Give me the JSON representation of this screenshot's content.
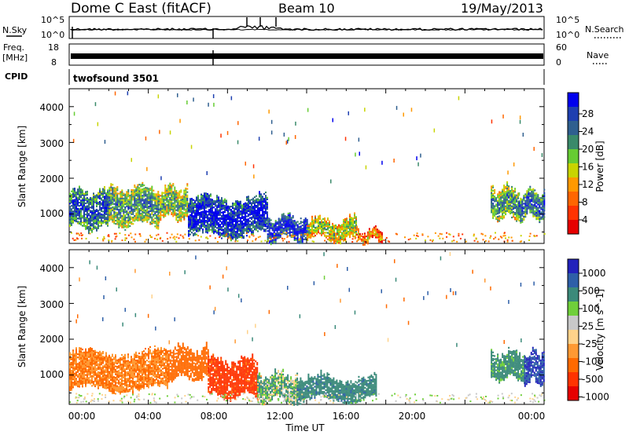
{
  "header": {
    "title": "Dome C East (fitACF)",
    "beam": "Beam 10",
    "date": "19/May/2013"
  },
  "noise_panel": {
    "left_label": "N.Sky",
    "right_label": "N.Search",
    "left_ticks": [
      "10^5",
      "10^0"
    ],
    "right_ticks": [
      "10^5",
      "10^0"
    ],
    "colors": {
      "sky": "#000000",
      "search": "#000000"
    }
  },
  "freq_panel": {
    "left_label_line1": "Freq.",
    "left_label_line2": "[MHz]",
    "right_label": "Nave",
    "left_ticks": [
      "18",
      "8"
    ],
    "right_ticks": [
      "60",
      "0"
    ]
  },
  "cpid_panel": {
    "label": "CPID",
    "program": "twofsound 3501"
  },
  "power_panel": {
    "ylabel": "Slant Range [km]",
    "yticks": [
      "4000",
      "3000",
      "2000",
      "1000"
    ],
    "colorbar_title": "Power [dB]",
    "colorbar_ticks": [
      "28",
      "24",
      "20",
      "16",
      "12",
      "8",
      "4"
    ],
    "colorbar_colors": [
      "#0000ee",
      "#1e3fb0",
      "#2f5f8f",
      "#3a8a6a",
      "#66cc33",
      "#c8d400",
      "#ff9900",
      "#ff6600",
      "#ff3300",
      "#e60000"
    ]
  },
  "velocity_panel": {
    "ylabel": "Slant Range [km]",
    "yticks": [
      "4000",
      "3000",
      "2000",
      "1000"
    ],
    "colorbar_title": "Velocity [m s^-1]",
    "colorbar_ticks": [
      "1000",
      "500",
      "100",
      "25",
      "-25",
      "-100",
      "-500",
      "-1000"
    ],
    "colorbar_colors": [
      "#2222bb",
      "#2e5fa8",
      "#3b8a7a",
      "#6fcf3a",
      "#c8c8c8",
      "#ffd28a",
      "#ff9933",
      "#ff6a00",
      "#ff3300",
      "#e60000"
    ]
  },
  "xaxis": {
    "label": "Time UT",
    "ticks": [
      "00:00",
      "04:00",
      "08:00",
      "12:00",
      "16:00",
      "20:00",
      "00:00"
    ]
  },
  "chart_data": [
    {
      "type": "line",
      "name": "noise",
      "x": [
        "00:00",
        "04:00",
        "08:00",
        "12:00",
        "16:00",
        "20:00",
        "24:00"
      ],
      "yscale": "log",
      "ylim": [
        1,
        100000
      ]
    },
    {
      "type": "line",
      "name": "frequency",
      "x": [
        "00:00",
        "24:00"
      ],
      "ylim": [
        8,
        18
      ]
    },
    {
      "type": "heatmap",
      "name": "power",
      "x_range_hours": [
        0,
        24
      ],
      "y_range_km": [
        180,
        4500
      ],
      "value_range": [
        0,
        30
      ],
      "units": "dB",
      "xlabel": "Time UT",
      "ylabel": "Slant Range [km]",
      "regions": [
        {
          "t": [
            0.0,
            2.0
          ],
          "r": [
            600,
            1600
          ],
          "db": 22
        },
        {
          "t": [
            2.0,
            4.5
          ],
          "r": [
            700,
            1700
          ],
          "db": 18
        },
        {
          "t": [
            4.5,
            6.0
          ],
          "r": [
            900,
            1700
          ],
          "db": 16
        },
        {
          "t": [
            6.0,
            10.0
          ],
          "r": [
            400,
            1400
          ],
          "db": 26
        },
        {
          "t": [
            10.0,
            12.0
          ],
          "r": [
            300,
            900
          ],
          "db": 26
        },
        {
          "t": [
            12.0,
            14.5
          ],
          "r": [
            300,
            800
          ],
          "db": 14
        },
        {
          "t": [
            14.5,
            15.8
          ],
          "r": [
            250,
            500
          ],
          "db": 8
        },
        {
          "t": [
            21.3,
            22.7
          ],
          "r": [
            900,
            1700
          ],
          "db": 18
        },
        {
          "t": [
            22.7,
            24.0
          ],
          "r": [
            900,
            1600
          ],
          "db": 22
        }
      ]
    },
    {
      "type": "heatmap",
      "name": "velocity",
      "x_range_hours": [
        0,
        24
      ],
      "y_range_km": [
        180,
        4500
      ],
      "value_range": [
        -1000,
        1000
      ],
      "units": "m s^-1",
      "xlabel": "Time UT",
      "ylabel": "Slant Range [km]",
      "regions": [
        {
          "t": [
            0.0,
            5.0
          ],
          "r": [
            600,
            1600
          ],
          "v": -300
        },
        {
          "t": [
            5.0,
            7.0
          ],
          "r": [
            900,
            1700
          ],
          "v": -500
        },
        {
          "t": [
            7.0,
            9.5
          ],
          "r": [
            400,
            1400
          ],
          "v": -800
        },
        {
          "t": [
            9.5,
            11.5
          ],
          "r": [
            300,
            1000
          ],
          "v": 60
        },
        {
          "t": [
            11.5,
            15.5
          ],
          "r": [
            300,
            900
          ],
          "v": 200
        },
        {
          "t": [
            21.3,
            23.0
          ],
          "r": [
            900,
            1600
          ],
          "v": 150
        },
        {
          "t": [
            23.0,
            24.0
          ],
          "r": [
            800,
            1600
          ],
          "v": 700
        }
      ]
    }
  ]
}
